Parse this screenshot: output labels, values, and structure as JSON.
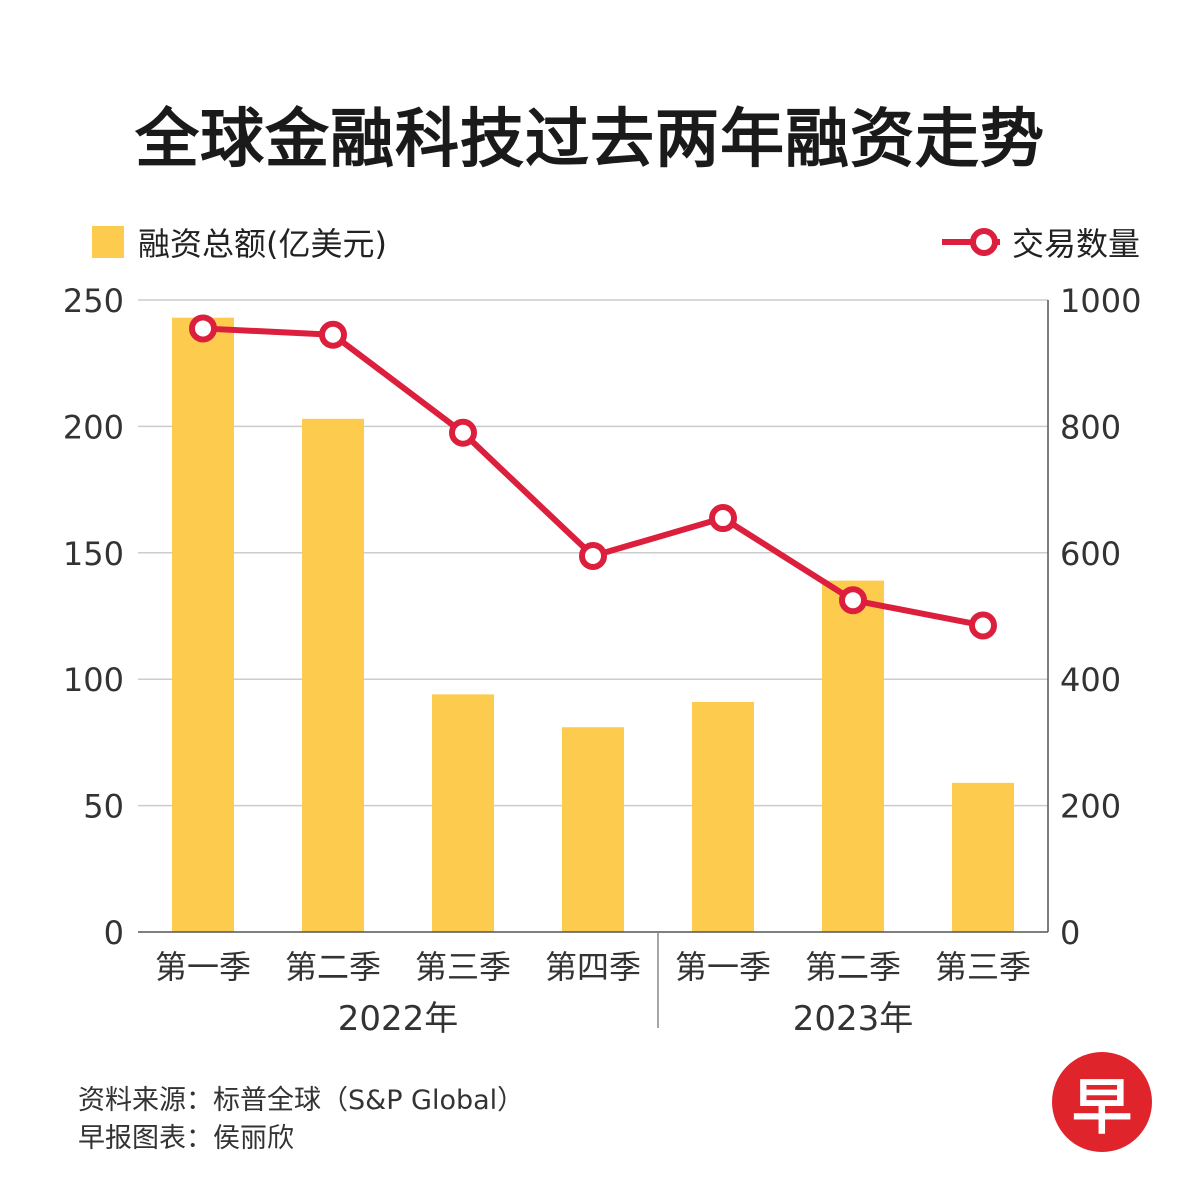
{
  "title": "全球金融科技过去两年融资走势",
  "legend": {
    "bar_label": "融资总额(亿美元)",
    "line_label": "交易数量"
  },
  "colors": {
    "bar": "#FDCB4E",
    "line": "#DC1F3C",
    "grid": "#CCCCCC",
    "axis": "#555555",
    "logo_bg": "#E0242B"
  },
  "chart_data": {
    "type": "bar",
    "categories": [
      "第一季",
      "第二季",
      "第三季",
      "第四季",
      "第一季",
      "第二季",
      "第三季"
    ],
    "groups": [
      {
        "label": "2022年",
        "start": 0,
        "end": 3
      },
      {
        "label": "2023年",
        "start": 4,
        "end": 6
      }
    ],
    "series": [
      {
        "name": "融资总额(亿美元)",
        "type": "bar",
        "axis": "left",
        "values": [
          243,
          203,
          94,
          81,
          91,
          139,
          59
        ]
      },
      {
        "name": "交易数量",
        "type": "line",
        "axis": "right",
        "values": [
          955,
          945,
          790,
          595,
          655,
          525,
          485
        ]
      }
    ],
    "y_left": {
      "ticks": [
        0,
        50,
        100,
        150,
        200,
        250
      ],
      "lim": [
        0,
        250
      ]
    },
    "y_right": {
      "ticks": [
        0,
        200,
        400,
        600,
        800,
        1000
      ],
      "lim": [
        0,
        1000
      ]
    },
    "grid": true,
    "legend_position": "top"
  },
  "footer": {
    "source": "资料来源：标普全球（S&P Global）",
    "credit": "早报图表：侯丽欣"
  },
  "logo": {
    "text": "早"
  }
}
